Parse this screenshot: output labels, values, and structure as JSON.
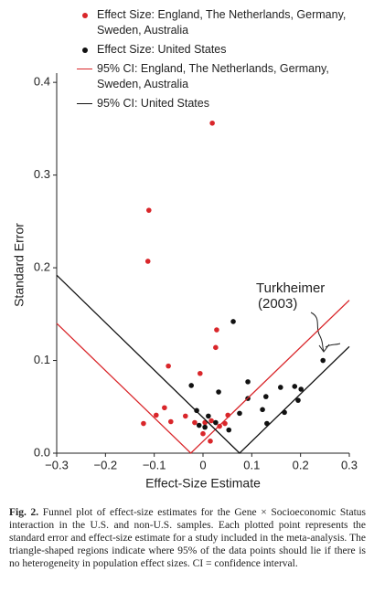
{
  "chart_data": {
    "type": "scatter",
    "xlabel": "Effect-Size Estimate",
    "ylabel": "Standard Error",
    "xlim": [
      -0.3,
      0.3
    ],
    "ylim": [
      0,
      0.41
    ],
    "xticks": [
      {
        "value": -0.3,
        "label": "−0.3"
      },
      {
        "value": -0.2,
        "label": "−0.2"
      },
      {
        "value": -0.1,
        "label": "−0.1"
      },
      0,
      0.1,
      0.2,
      0.3
    ],
    "yticks": [
      {
        "value": 0,
        "label": "0.0"
      },
      0.1,
      0.2,
      0.3,
      0.4
    ],
    "series": [
      {
        "name": "Effect Size: England, The Netherlands, Germany, Sweden, Australia",
        "color": "#d9262a",
        "type": "scatter",
        "x": [
          0.019,
          -0.111,
          -0.113,
          0.028,
          0.026,
          -0.071,
          -0.006,
          -0.079,
          -0.096,
          -0.122,
          -0.066,
          -0.036,
          -0.017,
          0.004,
          0.017,
          0.034,
          0.045,
          0.051,
          0.0,
          0.015
        ],
        "values": [
          0.356,
          0.262,
          0.207,
          0.133,
          0.114,
          0.094,
          0.086,
          0.049,
          0.041,
          0.032,
          0.034,
          0.04,
          0.033,
          0.033,
          0.035,
          0.029,
          0.032,
          0.041,
          0.021,
          0.013
        ]
      },
      {
        "name": "Effect Size: United States",
        "color": "#111111",
        "type": "scatter",
        "x": [
          0.062,
          -0.024,
          0.032,
          -0.013,
          0.011,
          -0.008,
          0.004,
          0.026,
          0.053,
          0.075,
          0.092,
          0.092,
          0.122,
          0.129,
          0.131,
          0.159,
          0.167,
          0.188,
          0.195,
          0.201,
          0.246
        ],
        "values": [
          0.142,
          0.073,
          0.066,
          0.046,
          0.04,
          0.03,
          0.028,
          0.033,
          0.025,
          0.043,
          0.077,
          0.059,
          0.047,
          0.061,
          0.032,
          0.071,
          0.044,
          0.072,
          0.057,
          0.069,
          0.1
        ]
      },
      {
        "name": "95% CI: England, The Netherlands, Germany, Sweden, Australia",
        "color": "#d9262a",
        "type": "line",
        "x": [
          -0.3,
          -0.025,
          0.3
        ],
        "values": [
          0.14,
          0,
          0.165
        ]
      },
      {
        "name": "95% CI: United States",
        "color": "#111111",
        "type": "line",
        "x": [
          -0.3,
          0.075,
          0.3
        ],
        "values": [
          0.192,
          0,
          0.115
        ]
      }
    ],
    "annotation": [
      "Turkheimer",
      "(2003)"
    ]
  },
  "caption": {
    "label": "Fig. 2.",
    "text": "Funnel plot of effect-size estimates for the Gene × Socioeconomic Status interaction in the U.S. and non-U.S. samples. Each plotted point represents the standard error and effect-size estimate for a study included in the meta-analysis. The triangle-shaped regions indicate where 95% of the data points should lie if there is no heterogeneity in population effect sizes. CI = confidence interval."
  }
}
